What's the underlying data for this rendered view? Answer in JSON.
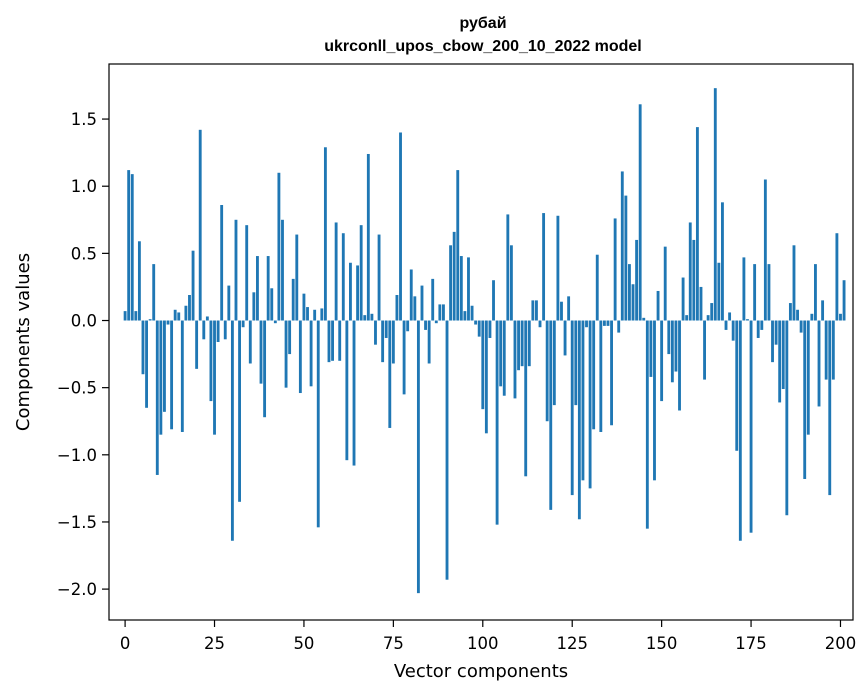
{
  "chart_data": {
    "type": "bar",
    "title": "рубай",
    "subtitle": "ukrconll_upos_cbow_200_10_2022 model",
    "xlabel": "Vector components",
    "ylabel": "Components values",
    "xlim": [
      -4.5,
      203.5
    ],
    "ylim": [
      -2.23,
      1.91
    ],
    "xticks": [
      0,
      25,
      50,
      75,
      100,
      125,
      150,
      175,
      200
    ],
    "xtick_labels": [
      "0",
      "25",
      "50",
      "75",
      "100",
      "125",
      "150",
      "175",
      "200"
    ],
    "yticks": [
      1.5,
      1.0,
      0.5,
      0.0,
      -0.5,
      -1.0,
      -1.5,
      -2.0
    ],
    "ytick_labels": [
      "1.5",
      "1.0",
      "0.5",
      "0.0",
      "−0.5",
      "−1.0",
      "−1.5",
      "−2.0"
    ],
    "grid": false,
    "bar_color": "#1f77b4",
    "values": [
      0.07,
      1.12,
      1.09,
      0.07,
      0.59,
      -0.4,
      -0.65,
      0.01,
      0.42,
      -1.15,
      -0.85,
      -0.68,
      -0.03,
      -0.81,
      0.08,
      0.06,
      -0.83,
      0.11,
      0.19,
      0.52,
      -0.36,
      1.42,
      -0.14,
      0.03,
      -0.6,
      -0.85,
      -0.16,
      0.86,
      -0.14,
      0.26,
      -1.64,
      0.75,
      -1.35,
      -0.05,
      0.71,
      -0.32,
      0.21,
      0.48,
      -0.47,
      -0.72,
      0.48,
      0.24,
      -0.02,
      1.1,
      0.75,
      -0.5,
      -0.25,
      0.31,
      0.64,
      -0.54,
      0.2,
      0.1,
      -0.49,
      0.08,
      -1.54,
      0.09,
      1.29,
      -0.31,
      -0.3,
      0.73,
      -0.3,
      0.65,
      -1.04,
      0.43,
      -1.08,
      0.41,
      0.71,
      0.04,
      1.24,
      0.05,
      -0.18,
      0.64,
      -0.31,
      -0.13,
      -0.8,
      -0.32,
      0.19,
      1.4,
      -0.55,
      -0.08,
      0.38,
      0.18,
      -2.03,
      0.26,
      -0.07,
      -0.32,
      0.31,
      -0.02,
      0.12,
      0.12,
      -1.93,
      0.56,
      0.66,
      1.12,
      0.48,
      0.07,
      0.47,
      0.11,
      -0.03,
      -0.12,
      -0.66,
      -0.84,
      -0.13,
      0.3,
      -1.52,
      -0.49,
      -0.56,
      0.79,
      0.56,
      -0.58,
      -0.37,
      -0.34,
      -1.16,
      -0.34,
      0.15,
      0.15,
      -0.05,
      0.8,
      -0.75,
      -1.41,
      -0.63,
      0.78,
      0.14,
      -0.26,
      0.18,
      -1.3,
      -0.63,
      -1.48,
      -1.19,
      -0.05,
      -1.25,
      -0.81,
      0.49,
      -0.83,
      -0.04,
      -0.04,
      -0.78,
      0.76,
      -0.09,
      1.11,
      0.93,
      0.42,
      0.27,
      0.6,
      1.61,
      0.02,
      -1.55,
      -0.42,
      -1.19,
      0.22,
      -0.6,
      0.55,
      -0.25,
      -0.46,
      -0.38,
      -0.67,
      0.32,
      0.04,
      0.73,
      0.6,
      1.44,
      0.25,
      -0.44,
      0.04,
      0.13,
      1.73,
      0.43,
      0.88,
      -0.07,
      0.06,
      -0.15,
      -0.97,
      -1.64,
      0.47,
      0.01,
      -1.58,
      0.42,
      -0.13,
      -0.07,
      1.05,
      0.42,
      -0.31,
      -0.18,
      -0.61,
      -0.51,
      -1.45,
      0.13,
      0.56,
      0.08,
      -0.09,
      -1.18,
      -0.85,
      0.05,
      0.42,
      -0.64,
      0.15,
      -0.44,
      -1.3,
      -0.44,
      0.65,
      0.05,
      0.3
    ]
  }
}
